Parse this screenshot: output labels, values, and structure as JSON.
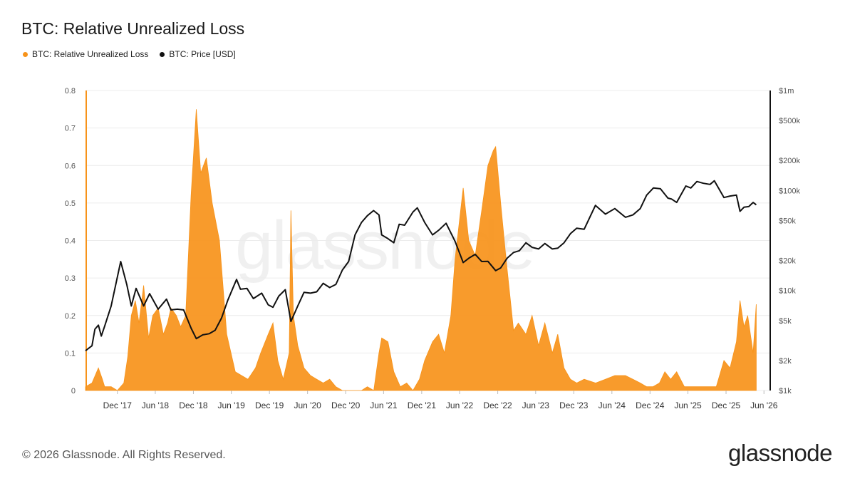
{
  "title": "BTC: Relative Unrealized Loss",
  "legend": [
    {
      "label": "BTC: Relative Unrealized Loss",
      "color": "#f7931a"
    },
    {
      "label": "BTC: Price [USD]",
      "color": "#111111"
    }
  ],
  "footer": "© 2026 Glassnode. All Rights Reserved.",
  "brand": "glassnode",
  "chart_data": {
    "type": "area",
    "grid": "horizontal",
    "x_range": [
      "2017-07-01",
      "2026-07-01"
    ],
    "x_ticks": [
      "Dec '17",
      "Jun '18",
      "Dec '18",
      "Jun '19",
      "Dec '19",
      "Jun '20",
      "Dec '20",
      "Jun '21",
      "Dec '21",
      "Jun '22",
      "Dec '22",
      "Jun '23",
      "Dec '23",
      "Jun '24",
      "Dec '24",
      "Jun '25",
      "Dec '25",
      "Jun '26"
    ],
    "y_left": {
      "range": [
        0,
        0.8
      ],
      "ticks": [
        "0",
        "0.1",
        "0.2",
        "0.3",
        "0.4",
        "0.5",
        "0.6",
        "0.7",
        "0.8"
      ]
    },
    "y_right": {
      "scale": "log",
      "range": [
        1000,
        1000000
      ],
      "ticks": [
        {
          "value": 1000,
          "label": "$1k"
        },
        {
          "value": 2000,
          "label": "$2k"
        },
        {
          "value": 5000,
          "label": "$5k"
        },
        {
          "value": 10000,
          "label": "$10k"
        },
        {
          "value": 20000,
          "label": "$20k"
        },
        {
          "value": 50000,
          "label": "$50k"
        },
        {
          "value": 100000,
          "label": "$100k"
        },
        {
          "value": 200000,
          "label": "$200k"
        },
        {
          "value": 500000,
          "label": "$500k"
        },
        {
          "value": 1000000,
          "label": "$1m"
        }
      ]
    },
    "series": [
      {
        "name": "BTC: Relative Unrealized Loss",
        "axis": "left",
        "style": "area",
        "color": "#f7931a",
        "x": [
          "2017-07-01",
          "2017-08-01",
          "2017-09-01",
          "2017-09-20",
          "2017-10-01",
          "2017-11-01",
          "2017-12-01",
          "2018-01-01",
          "2018-01-20",
          "2018-02-06",
          "2018-02-25",
          "2018-03-15",
          "2018-04-06",
          "2018-04-30",
          "2018-05-20",
          "2018-06-15",
          "2018-07-10",
          "2018-07-30",
          "2018-08-15",
          "2018-09-10",
          "2018-10-01",
          "2018-10-25",
          "2018-11-20",
          "2018-12-15",
          "2019-01-05",
          "2019-02-01",
          "2019-03-01",
          "2019-04-05",
          "2019-05-10",
          "2019-06-20",
          "2019-07-20",
          "2019-08-20",
          "2019-09-25",
          "2019-10-20",
          "2019-11-25",
          "2019-12-18",
          "2020-01-10",
          "2020-02-05",
          "2020-03-05",
          "2020-03-13",
          "2020-03-25",
          "2020-04-15",
          "2020-05-15",
          "2020-06-15",
          "2020-07-15",
          "2020-08-15",
          "2020-09-15",
          "2020-10-15",
          "2020-11-15",
          "2020-12-15",
          "2021-01-15",
          "2021-02-15",
          "2021-03-15",
          "2021-04-15",
          "2021-05-10",
          "2021-05-23",
          "2021-06-22",
          "2021-07-20",
          "2021-08-20",
          "2021-09-20",
          "2021-10-20",
          "2021-11-20",
          "2021-12-15",
          "2022-01-22",
          "2022-02-20",
          "2022-03-20",
          "2022-04-20",
          "2022-05-10",
          "2022-06-18",
          "2022-07-15",
          "2022-08-15",
          "2022-09-15",
          "2022-10-15",
          "2022-11-10",
          "2022-11-21",
          "2022-12-15",
          "2023-01-10",
          "2023-02-15",
          "2023-03-10",
          "2023-04-15",
          "2023-05-15",
          "2023-06-15",
          "2023-07-15",
          "2023-08-20",
          "2023-09-15",
          "2023-10-15",
          "2023-11-15",
          "2023-12-15",
          "2024-01-20",
          "2024-03-15",
          "2024-05-01",
          "2024-06-15",
          "2024-08-05",
          "2024-09-10",
          "2024-10-15",
          "2024-11-15",
          "2024-12-15",
          "2025-01-15",
          "2025-02-10",
          "2025-03-10",
          "2025-04-08",
          "2025-05-15",
          "2025-06-15",
          "2025-07-15",
          "2025-08-15",
          "2025-09-15",
          "2025-10-15",
          "2025-11-21",
          "2025-12-20",
          "2026-01-20",
          "2026-02-06",
          "2026-02-25",
          "2026-03-15",
          "2026-04-10",
          "2026-04-25"
        ],
        "values": [
          0.01,
          0.02,
          0.06,
          0.03,
          0.01,
          0.01,
          0.0,
          0.02,
          0.09,
          0.2,
          0.24,
          0.18,
          0.28,
          0.14,
          0.2,
          0.22,
          0.15,
          0.18,
          0.22,
          0.2,
          0.17,
          0.2,
          0.52,
          0.75,
          0.58,
          0.62,
          0.5,
          0.4,
          0.15,
          0.05,
          0.04,
          0.03,
          0.06,
          0.1,
          0.15,
          0.18,
          0.08,
          0.03,
          0.1,
          0.48,
          0.2,
          0.12,
          0.06,
          0.04,
          0.03,
          0.02,
          0.03,
          0.01,
          0.0,
          0.0,
          0.0,
          0.0,
          0.01,
          0.0,
          0.1,
          0.14,
          0.13,
          0.05,
          0.01,
          0.02,
          0.0,
          0.03,
          0.08,
          0.13,
          0.15,
          0.1,
          0.2,
          0.35,
          0.54,
          0.4,
          0.36,
          0.48,
          0.6,
          0.64,
          0.65,
          0.5,
          0.35,
          0.16,
          0.18,
          0.15,
          0.2,
          0.12,
          0.18,
          0.1,
          0.15,
          0.06,
          0.03,
          0.02,
          0.03,
          0.02,
          0.03,
          0.04,
          0.04,
          0.03,
          0.02,
          0.01,
          0.01,
          0.02,
          0.05,
          0.03,
          0.05,
          0.01,
          0.01,
          0.01,
          0.01,
          0.01,
          0.01,
          0.08,
          0.06,
          0.13,
          0.24,
          0.17,
          0.2,
          0.1,
          0.23
        ]
      },
      {
        "name": "BTC: Price [USD]",
        "axis": "right",
        "style": "line",
        "color": "#111111",
        "x": [
          "2017-07-01",
          "2017-08-01",
          "2017-08-15",
          "2017-09-01",
          "2017-09-15",
          "2017-10-01",
          "2017-11-01",
          "2017-12-17",
          "2018-01-15",
          "2018-02-06",
          "2018-03-01",
          "2018-04-06",
          "2018-05-05",
          "2018-06-15",
          "2018-07-25",
          "2018-08-15",
          "2018-09-15",
          "2018-10-15",
          "2018-11-20",
          "2018-12-15",
          "2019-01-15",
          "2019-02-15",
          "2019-03-15",
          "2019-04-15",
          "2019-05-15",
          "2019-06-26",
          "2019-07-15",
          "2019-08-15",
          "2019-09-15",
          "2019-10-25",
          "2019-11-25",
          "2019-12-18",
          "2020-01-15",
          "2020-02-15",
          "2020-03-13",
          "2020-04-15",
          "2020-05-15",
          "2020-06-15",
          "2020-07-15",
          "2020-08-15",
          "2020-09-15",
          "2020-10-15",
          "2020-11-15",
          "2020-12-15",
          "2021-01-15",
          "2021-02-15",
          "2021-03-15",
          "2021-04-14",
          "2021-05-10",
          "2021-05-23",
          "2021-06-22",
          "2021-07-20",
          "2021-08-15",
          "2021-09-10",
          "2021-10-20",
          "2021-11-10",
          "2021-12-15",
          "2022-01-22",
          "2022-02-20",
          "2022-03-28",
          "2022-05-10",
          "2022-06-18",
          "2022-07-15",
          "2022-08-15",
          "2022-09-15",
          "2022-10-15",
          "2022-11-21",
          "2022-12-15",
          "2023-01-15",
          "2023-02-15",
          "2023-03-15",
          "2023-04-15",
          "2023-05-15",
          "2023-06-15",
          "2023-07-15",
          "2023-08-20",
          "2023-09-15",
          "2023-10-15",
          "2023-11-15",
          "2023-12-15",
          "2024-01-20",
          "2024-03-14",
          "2024-05-01",
          "2024-06-15",
          "2024-08-05",
          "2024-09-10",
          "2024-10-15",
          "2024-11-15",
          "2024-12-17",
          "2025-01-20",
          "2025-02-25",
          "2025-03-15",
          "2025-04-08",
          "2025-05-22",
          "2025-06-15",
          "2025-07-14",
          "2025-08-14",
          "2025-09-15",
          "2025-10-06",
          "2025-11-21",
          "2025-12-20",
          "2026-01-20",
          "2026-02-06",
          "2026-02-25",
          "2026-03-20",
          "2026-04-10",
          "2026-04-25"
        ],
        "values": [
          2500,
          2800,
          4100,
          4500,
          3500,
          4400,
          7000,
          19500,
          11500,
          7000,
          10500,
          7000,
          9300,
          6500,
          8200,
          6400,
          6500,
          6400,
          4200,
          3300,
          3600,
          3700,
          4000,
          5300,
          8000,
          12900,
          10300,
          10500,
          8300,
          9400,
          7200,
          6800,
          8800,
          10200,
          4900,
          7000,
          9600,
          9400,
          9700,
          11800,
          10700,
          11500,
          16000,
          19500,
          36000,
          48000,
          56000,
          63000,
          57000,
          36000,
          33000,
          30000,
          46000,
          45000,
          61000,
          67000,
          48000,
          36000,
          40000,
          47000,
          31000,
          19000,
          21000,
          23000,
          19500,
          19600,
          15800,
          16800,
          21000,
          24000,
          25000,
          30000,
          27000,
          26000,
          29500,
          26000,
          26500,
          30000,
          37000,
          42000,
          41000,
          71000,
          58000,
          66000,
          54000,
          57000,
          66000,
          90000,
          106000,
          104000,
          84000,
          82000,
          76000,
          111000,
          106000,
          123000,
          118000,
          115000,
          125000,
          85000,
          88000,
          90000,
          62000,
          68000,
          69000,
          76000,
          72000
        ]
      }
    ]
  }
}
